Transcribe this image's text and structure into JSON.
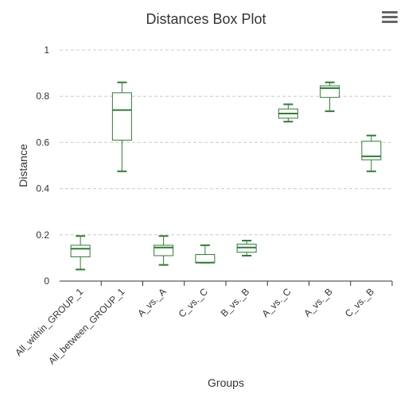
{
  "chart_data": {
    "type": "boxplot",
    "title": "Distances Box Plot",
    "xlabel": "Groups",
    "ylabel": "Distance",
    "ylim": [
      0,
      1
    ],
    "yticks": [
      "0",
      "0.2",
      "0.4",
      "0.6",
      "0.8",
      "1"
    ],
    "grid": true,
    "color": "#2e7d32",
    "categories": [
      "All_within_GROUP_1",
      "All_between_GROUP_1",
      "A_vs._A",
      "C_vs._C",
      "B_vs._B",
      "A_vs._C",
      "A_vs._B",
      "C_vs._B"
    ],
    "boxes": [
      {
        "low": 0.05,
        "q1": 0.105,
        "median": 0.14,
        "q3": 0.155,
        "high": 0.195
      },
      {
        "low": 0.475,
        "q1": 0.61,
        "median": 0.74,
        "q3": 0.815,
        "high": 0.86
      },
      {
        "low": 0.07,
        "q1": 0.11,
        "median": 0.145,
        "q3": 0.155,
        "high": 0.195
      },
      {
        "low": 0.08,
        "q1": 0.08,
        "median": 0.08,
        "q3": 0.115,
        "high": 0.155
      },
      {
        "low": 0.11,
        "q1": 0.125,
        "median": 0.145,
        "q3": 0.16,
        "high": 0.175
      },
      {
        "low": 0.69,
        "q1": 0.705,
        "median": 0.725,
        "q3": 0.745,
        "high": 0.765
      },
      {
        "low": 0.735,
        "q1": 0.795,
        "median": 0.835,
        "q3": 0.845,
        "high": 0.86
      },
      {
        "low": 0.475,
        "q1": 0.525,
        "median": 0.54,
        "q3": 0.605,
        "high": 0.63
      }
    ]
  }
}
